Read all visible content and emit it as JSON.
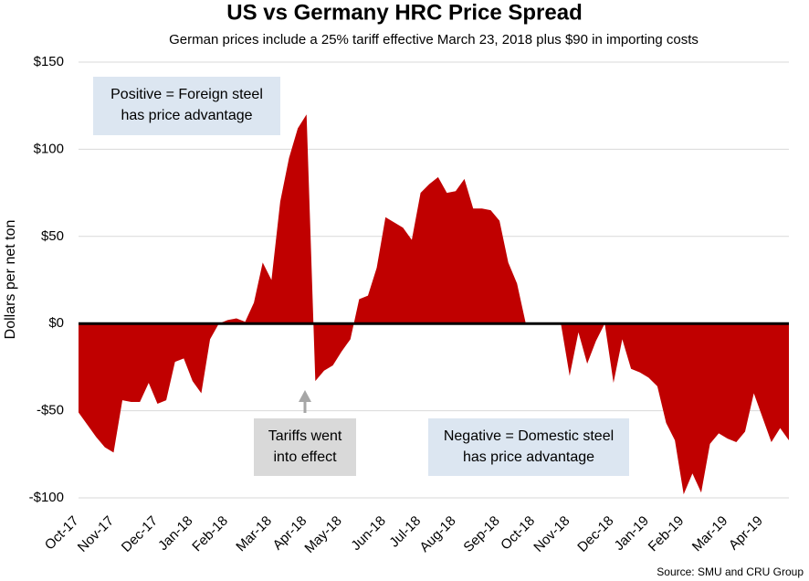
{
  "chart_data": {
    "type": "area",
    "title": "US vs Germany HRC Price Spread",
    "subtitle": "German prices include a 25% tariff effective March 23, 2018 plus $90 in importing costs",
    "y_label": "Dollars per net ton",
    "source": "Source: SMU and CRU Group",
    "color": "#c00000",
    "grid": true,
    "categories": [
      "Oct-17",
      null,
      null,
      null,
      "Nov-17",
      null,
      null,
      null,
      null,
      "Dec-17",
      null,
      null,
      null,
      "Jan-18",
      null,
      null,
      null,
      "Feb-18",
      null,
      null,
      null,
      null,
      "Mar-18",
      null,
      null,
      null,
      "Apr-18",
      null,
      null,
      null,
      "May-18",
      null,
      null,
      null,
      null,
      "Jun-18",
      null,
      null,
      null,
      "Jul-18",
      null,
      null,
      null,
      "Aug-18",
      null,
      null,
      null,
      null,
      "Sep-18",
      null,
      null,
      null,
      "Oct-18",
      null,
      null,
      null,
      "Nov-18",
      null,
      null,
      null,
      null,
      "Dec-18",
      null,
      null,
      null,
      "Jan-19",
      null,
      null,
      null,
      "Feb-19",
      null,
      null,
      null,
      null,
      "Mar-19",
      null,
      null,
      null,
      "Apr-19",
      null,
      null,
      null
    ],
    "values": [
      -51,
      -58,
      -65,
      -71,
      -74,
      -44,
      -45,
      -45,
      -34,
      -46,
      -44,
      -22,
      -20,
      -33,
      -40,
      -9,
      0,
      2,
      3,
      1,
      12,
      35,
      25,
      70,
      95,
      112,
      120,
      -33,
      -27,
      -24,
      -16,
      -9,
      14,
      16,
      32,
      61,
      58,
      55,
      48,
      75,
      80,
      84,
      75,
      76,
      83,
      66,
      66,
      65,
      59,
      35,
      23,
      0,
      0,
      0,
      0,
      0,
      -30,
      -5,
      -23,
      -10,
      0,
      -34,
      -9,
      -26,
      -28,
      -31,
      -36,
      -57,
      -67,
      -98,
      -86,
      -97,
      -69,
      -63,
      -66,
      -68,
      -62,
      -40,
      -54,
      -68,
      -60,
      -67
    ],
    "ylim": [
      -100,
      150
    ],
    "yticks": [
      {
        "value": -100,
        "label": "-$100"
      },
      {
        "value": -50,
        "label": "-$50"
      },
      {
        "value": 0,
        "label": "$0"
      },
      {
        "value": 50,
        "label": "$50"
      },
      {
        "value": 100,
        "label": "$100"
      },
      {
        "value": 150,
        "label": "$150"
      }
    ],
    "annotations": [
      {
        "lines": [
          "Positive = Foreign steel",
          "has price advantage"
        ]
      },
      {
        "lines": [
          "Tariffs went",
          "into effect"
        ]
      },
      {
        "lines": [
          "Negative = Domestic steel",
          "has price advantage"
        ]
      }
    ]
  }
}
